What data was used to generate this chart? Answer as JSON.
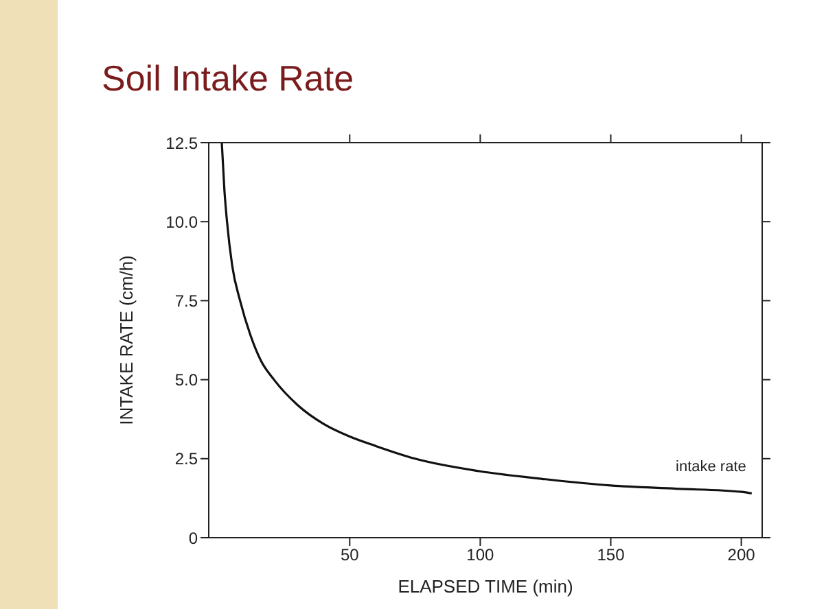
{
  "chart_data": {
    "type": "line",
    "title": "Soil Intake Rate",
    "xlabel": "ELAPSED TIME (min)",
    "ylabel": "INTAKE RATE (cm/h)",
    "xlim": [
      -4,
      208
    ],
    "xticks": [
      50,
      100,
      150,
      200
    ],
    "ylim": [
      0,
      12.5
    ],
    "yticks": [
      0,
      2.5,
      {
        "value": 5,
        "label": "5.0"
      },
      {
        "value": 7.5,
        "label": "7.5"
      },
      {
        "value": 10,
        "label": "10.0"
      },
      {
        "value": 12.5,
        "label": "12.5"
      }
    ],
    "grid": false,
    "legend": false,
    "marker": "none",
    "line_style": "solid",
    "series": [
      {
        "name": "intake rate",
        "color": "#111111",
        "x": [
          1,
          2,
          3,
          5,
          8,
          12,
          16,
          21,
          30,
          40,
          50,
          60,
          75,
          100,
          125,
          150,
          175,
          200,
          204
        ],
        "values": [
          12.5,
          11,
          10,
          8.6,
          7.5,
          6.4,
          5.6,
          5.0,
          4.2,
          3.6,
          3.2,
          2.9,
          2.5,
          2.1,
          1.85,
          1.65,
          1.55,
          1.45,
          1.4
        ]
      }
    ]
  }
}
